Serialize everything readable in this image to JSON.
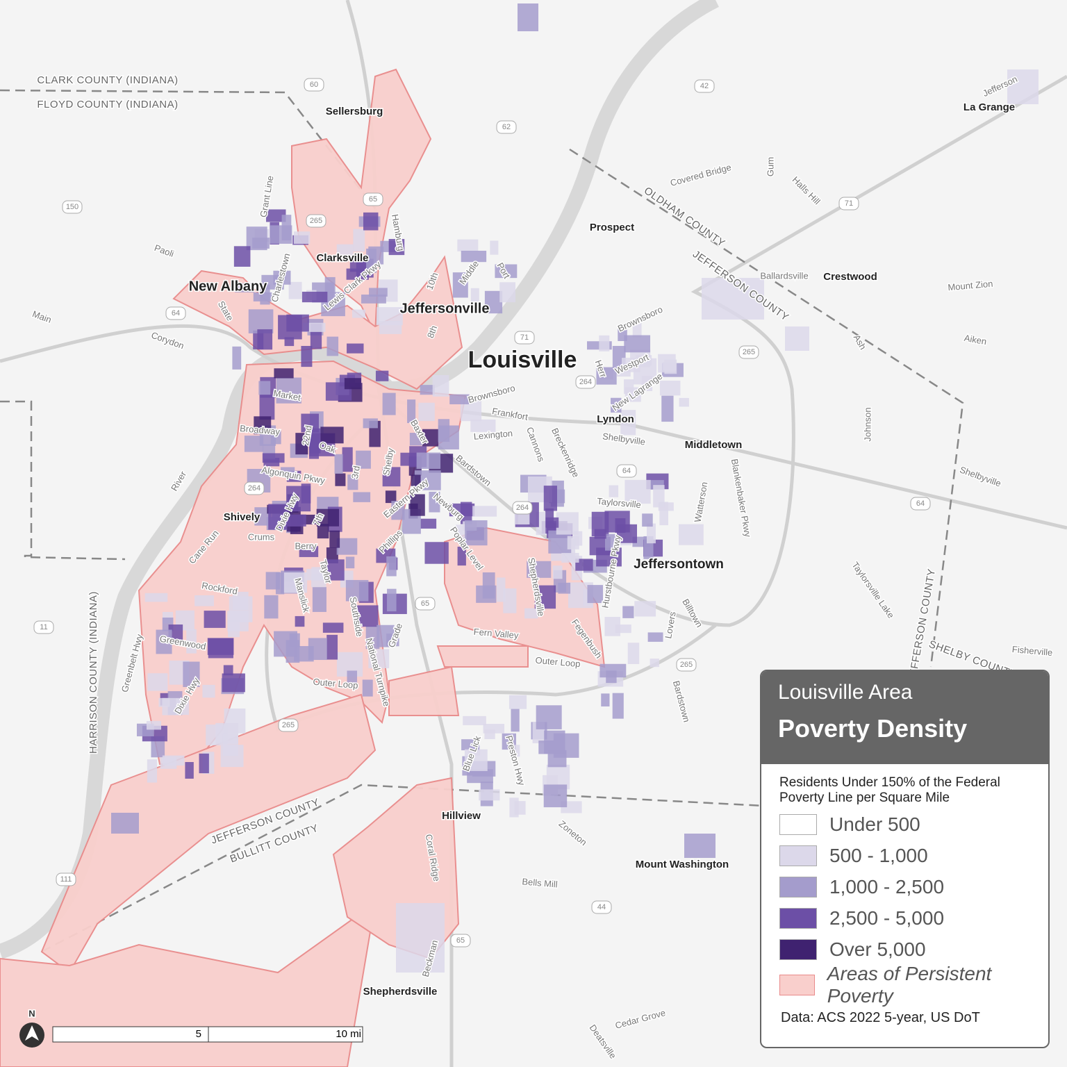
{
  "legend": {
    "title": "Louisville Area",
    "subtitle": "Poverty Density",
    "description": "Residents Under 150% of the Federal Poverty Line per Square Mile",
    "items": [
      {
        "label": "Under 500",
        "color": "#ffffff"
      },
      {
        "label": "500 - 1,000",
        "color": "#dcd8ea"
      },
      {
        "label": "1,000 - 2,500",
        "color": "#a49ccc"
      },
      {
        "label": "2,500 - 5,000",
        "color": "#6c4fa6"
      },
      {
        "label": "Over 5,000",
        "color": "#3f2270"
      }
    ],
    "persistent": {
      "label": "Areas of Persistent Poverty",
      "color": "#f9cfcc"
    },
    "source": "Data: ACS 2022 5-year, US DoT"
  },
  "places": [
    "Sellersburg",
    "Clarksville",
    "New Albany",
    "Jeffersonville",
    "Louisville",
    "Prospect",
    "Crestwood",
    "La Grange",
    "Lyndon",
    "Middletown",
    "Shively",
    "Jeffersontown",
    "Hillview",
    "Mount Washington",
    "Shepherdsville"
  ],
  "roads": [
    "Grant Line",
    "Paoli",
    "Main",
    "Corydon",
    "Charlestown",
    "State",
    "Lewis Clark Pkwy",
    "Hamburg",
    "10th",
    "Middle",
    "Port",
    "8th",
    "Covered Bridge",
    "Gum",
    "Halls Hill",
    "Ballardsville",
    "Mount Zion",
    "Jefferson",
    "Aiken",
    "Ash",
    "Brownsboro",
    "Westport",
    "Herr",
    "New Lagrange",
    "Brownsboro",
    "Frankfort",
    "Lexington",
    "Shelbyville",
    "Cannons",
    "Breckenridge",
    "Bardstown",
    "Johnson",
    "Shelbyville",
    "Market",
    "Broadway",
    "22nd",
    "Oak",
    "Baxter",
    "Shelby",
    "Algonquin Pkwy",
    "3rd",
    "Eastern Pkwy",
    "Newburg",
    "Taylorsville",
    "Watterson",
    "Blankenbaker Pkwy",
    "River",
    "Dixie Hwy",
    "7th",
    "Crums",
    "Berry",
    "Phillips",
    "Poplar Level",
    "Shepherdsville",
    "Hurstbourne Pkwy",
    "Cane Run",
    "Rockford",
    "Taylor",
    "Manslick",
    "Southside",
    "Grade",
    "National Turnpike",
    "Fern Valley",
    "Fegenbush",
    "Lovers",
    "Billtown",
    "Taylorsville Lake",
    "Greenwood",
    "Greenbelt Hwy",
    "Outer Loop",
    "Outer Loop",
    "Fisherville",
    "Dixie Hwy",
    "Bardstown",
    "Blue Lick",
    "Preston Hwy",
    "Zoneton",
    "Bells Mill",
    "Coral Ridge",
    "Cedar Grove",
    "Deatsville",
    "Beckman"
  ],
  "counties": [
    "CLARK COUNTY (INDIANA)",
    "FLOYD COUNTY (INDIANA)",
    "OLDHAM COUNTY",
    "JEFFERSON COUNTY",
    "HARRISON COUNTY (INDIANA)",
    "JEFFERSON COUNTY",
    "BULLITT COUNTY",
    "JEFFERSON COUNTY",
    "SHELBY COUNTY"
  ],
  "shields": [
    "60",
    "42",
    "62",
    "150",
    "265",
    "65",
    "71",
    "64",
    "71",
    "264",
    "265",
    "64",
    "264",
    "264",
    "64",
    "65",
    "11",
    "265",
    "265",
    "111",
    "44",
    "65"
  ],
  "scale": {
    "mid": "5",
    "end": "10 mi",
    "north": "N"
  }
}
